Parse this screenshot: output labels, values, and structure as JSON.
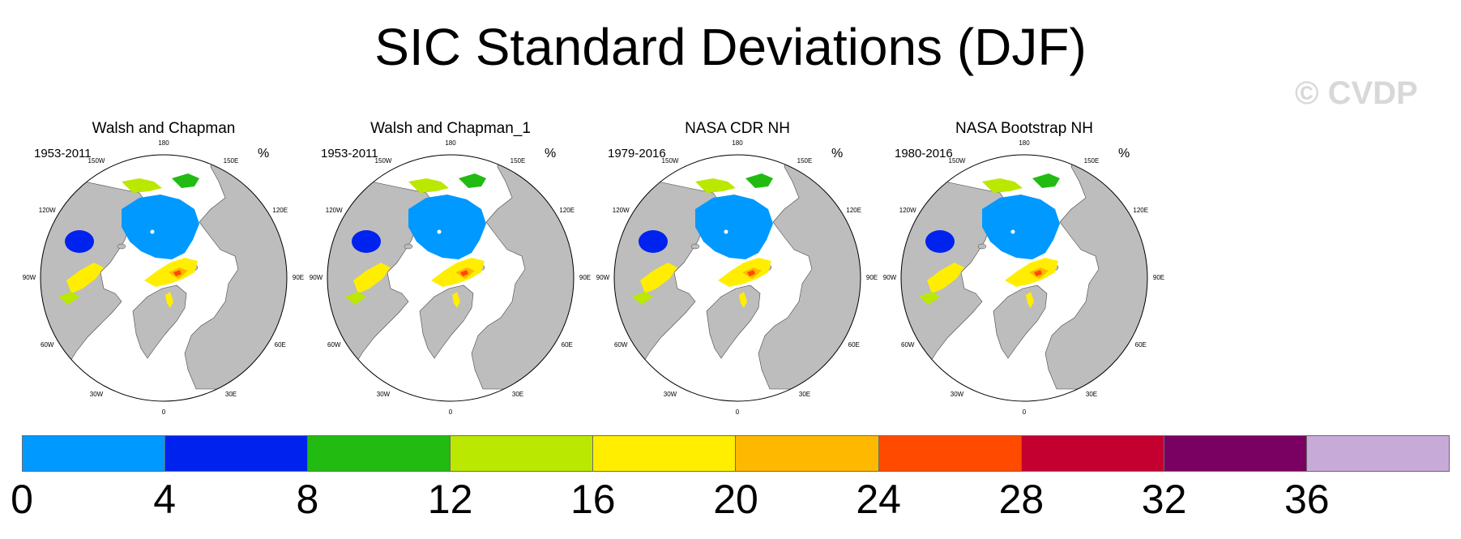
{
  "title": "SIC Standard Deviations (DJF)",
  "watermark": "© CVDP",
  "lon_labels": [
    "180",
    "150E",
    "120E",
    "90E",
    "60E",
    "30E",
    "0",
    "30W",
    "60W",
    "90W",
    "120W",
    "150W"
  ],
  "panels": [
    {
      "title": "Walsh and Chapman",
      "period": "1953-2011",
      "units": "%"
    },
    {
      "title": "Walsh and Chapman_1",
      "period": "1953-2011",
      "units": "%"
    },
    {
      "title": "NASA CDR NH",
      "period": "1979-2016",
      "units": "%"
    },
    {
      "title": "NASA Bootstrap NH",
      "period": "1980-2016",
      "units": "%"
    }
  ],
  "colorbar": {
    "labels": [
      "0",
      "4",
      "8",
      "12",
      "16",
      "20",
      "24",
      "28",
      "32",
      "36"
    ],
    "colors": [
      "#0099ff",
      "#0022ee",
      "#22bb11",
      "#bbe800",
      "#ffee00",
      "#ffb800",
      "#ff4a00",
      "#c40030",
      "#7a0062",
      "#c8aad8"
    ]
  },
  "colors": {
    "land": "#bdbdbd",
    "ocean": "#ffffff",
    "watermark": "#d8d8d8"
  }
}
